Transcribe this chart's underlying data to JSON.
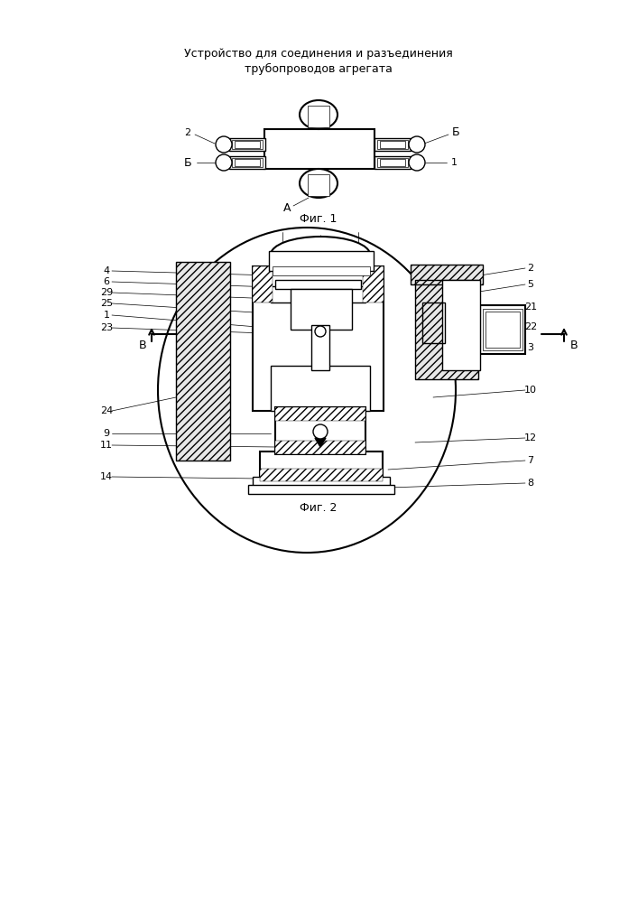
{
  "title_line1": "Устройство для соединения и разъединения",
  "title_line2": "трубопроводов агрегата",
  "fig1_caption": "Фиг. 1",
  "fig2_caption": "Фиг. 2",
  "section_label_A": "А",
  "section_label_B_left": "В",
  "section_label_B_right": "В",
  "bg_color": "#ffffff",
  "line_color": "#000000",
  "lw": 1.0,
  "lw_thick": 1.5,
  "lw_thin": 0.5
}
